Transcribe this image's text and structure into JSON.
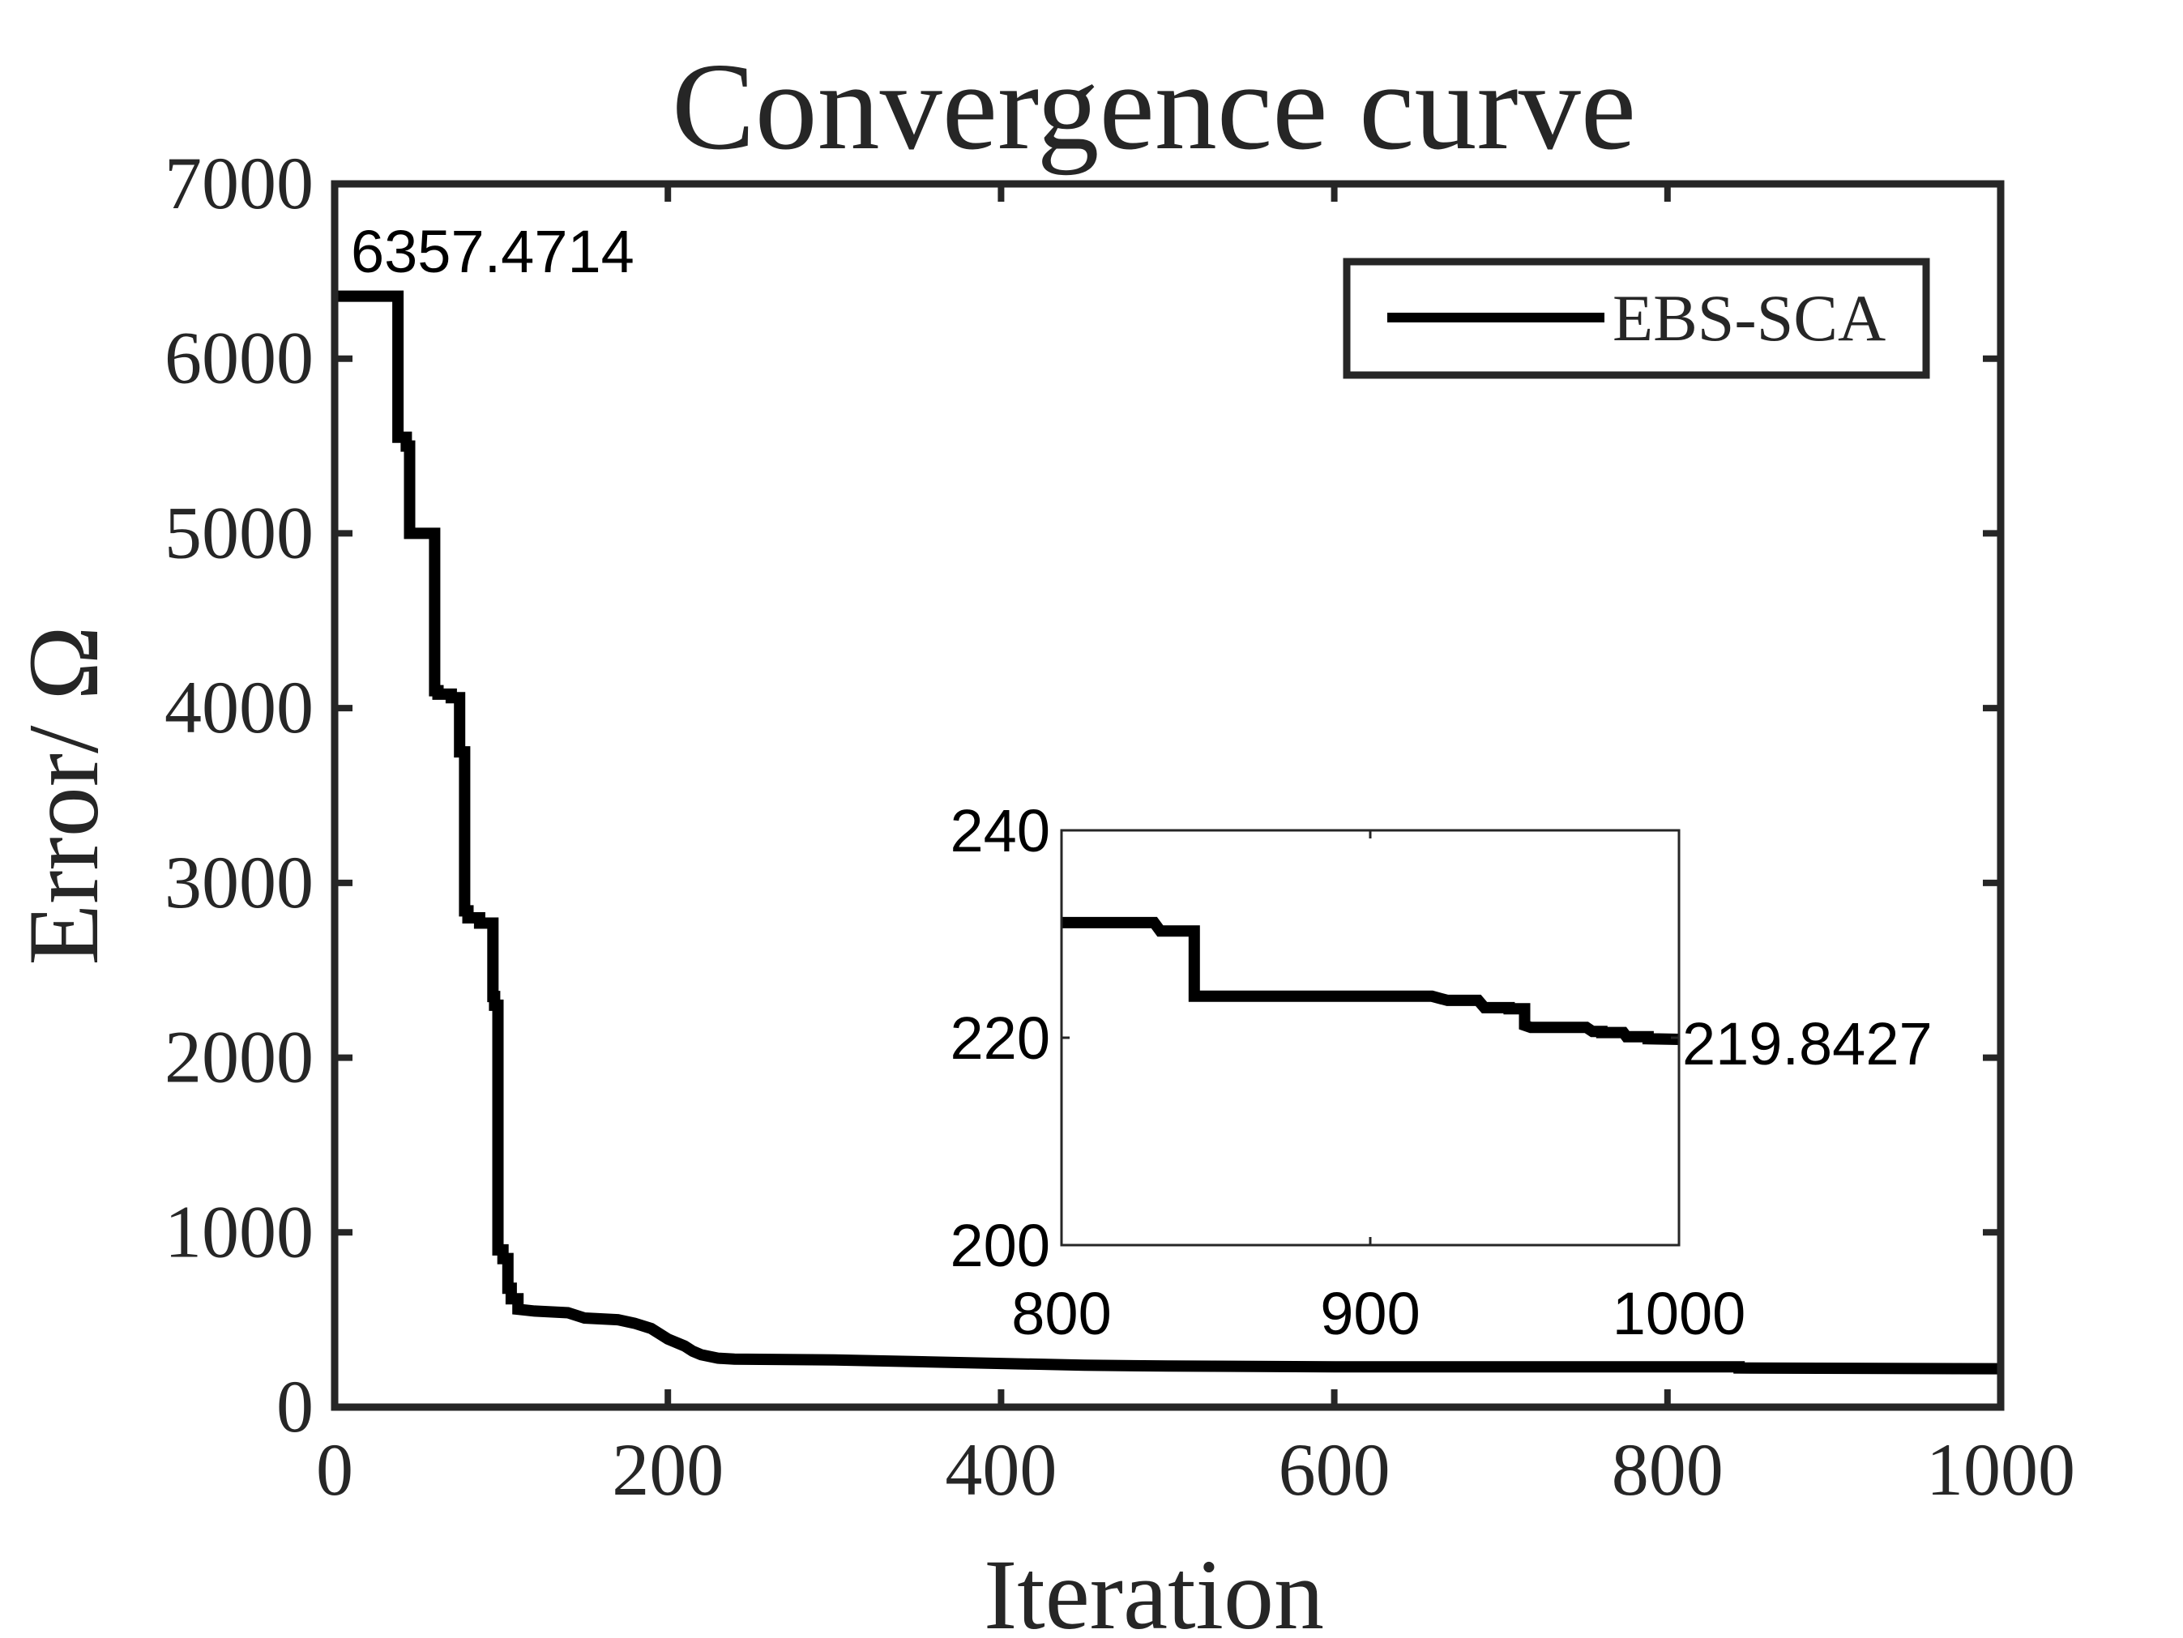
{
  "chart_data": [
    {
      "type": "line",
      "title": "Convergence curve",
      "xlabel": "Iteration",
      "ylabel": "Error/ Ω",
      "xlim": [
        0,
        1000
      ],
      "ylim": [
        0,
        7000
      ],
      "xticks": [
        0,
        200,
        400,
        600,
        800,
        1000
      ],
      "yticks": [
        0,
        1000,
        2000,
        3000,
        4000,
        5000,
        6000,
        7000
      ],
      "legend": {
        "position": "top-right",
        "entries": [
          "EBS-SCA"
        ]
      },
      "grid": false,
      "series": [
        {
          "name": "EBS-SCA",
          "color": "#000000",
          "x": [
            0,
            38,
            38,
            43,
            43,
            45,
            45,
            60,
            60,
            62,
            62,
            70,
            70,
            75,
            75,
            78,
            78,
            80,
            80,
            87,
            87,
            95,
            95,
            96,
            96,
            98,
            98,
            101,
            101,
            104,
            104,
            106,
            106,
            110,
            110,
            120,
            140,
            150,
            170,
            180,
            190,
            200,
            210,
            215,
            220,
            230,
            240,
            300,
            350,
            400,
            450,
            500,
            600,
            700,
            800,
            843,
            843,
            1000
          ],
          "y": [
            6357.47,
            6357.47,
            5550,
            5550,
            5500,
            5500,
            5000,
            5000,
            4100,
            4100,
            4080,
            4080,
            4060,
            4060,
            3750,
            3750,
            2840,
            2840,
            2800,
            2800,
            2770,
            2770,
            2350,
            2350,
            2300,
            2300,
            900,
            900,
            850,
            850,
            680,
            680,
            620,
            620,
            560,
            550,
            540,
            510,
            500,
            480,
            450,
            390,
            350,
            320,
            300,
            280,
            275,
            270,
            260,
            250,
            240,
            235,
            231,
            231,
            231,
            231,
            224,
            219.84
          ]
        }
      ],
      "annotations": [
        {
          "text": "6357.4714",
          "x": 0,
          "y": 6357.4714
        }
      ]
    },
    {
      "type": "line",
      "inset": true,
      "xlim": [
        800,
        1000
      ],
      "ylim": [
        200,
        240
      ],
      "xticks": [
        800,
        900,
        1000
      ],
      "yticks": [
        200,
        220,
        240
      ],
      "series": [
        {
          "name": "EBS-SCA",
          "color": "#000000",
          "x": [
            800,
            830,
            832,
            842,
            843,
            843,
            843.5,
            845,
            920,
            925,
            935,
            937,
            945,
            945,
            950,
            950,
            952,
            952,
            970,
            972,
            975,
            975,
            982,
            983,
            990,
            990,
            1000
          ],
          "y": [
            231.1,
            231.1,
            230.3,
            230.3,
            230.3,
            224,
            224,
            224,
            224,
            223.6,
            223.6,
            222.9,
            222.9,
            222.8,
            222.8,
            221.2,
            221.0,
            221.0,
            221.0,
            220.6,
            220.6,
            220.5,
            220.5,
            220.1,
            220.1,
            219.9,
            219.8427
          ]
        }
      ],
      "annotations": [
        {
          "text": "219.8427",
          "x": 1000,
          "y": 219.8427
        }
      ]
    }
  ]
}
